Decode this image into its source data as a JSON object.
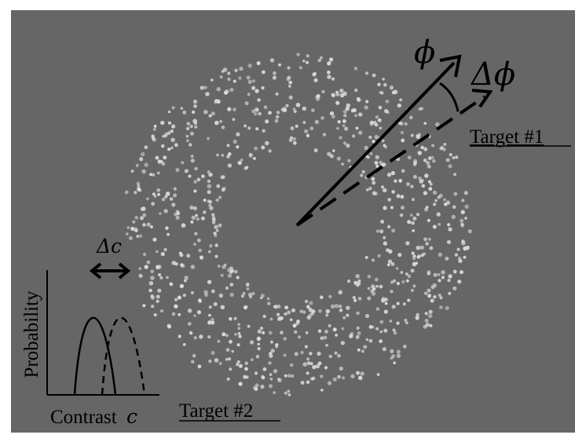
{
  "labels": {
    "phi": "ϕ",
    "delta_phi": "Δϕ",
    "target1": "Target #1",
    "target2": "Target #2",
    "delta_c": "Δc",
    "ylabel": "Probability",
    "xlabel": "Contrast",
    "xlabel_var": "c"
  },
  "colors": {
    "background": "#666666",
    "dots": "#d9d9d9",
    "ink": "#000000"
  },
  "dot_field": {
    "shape": "annulus",
    "count": 900
  }
}
